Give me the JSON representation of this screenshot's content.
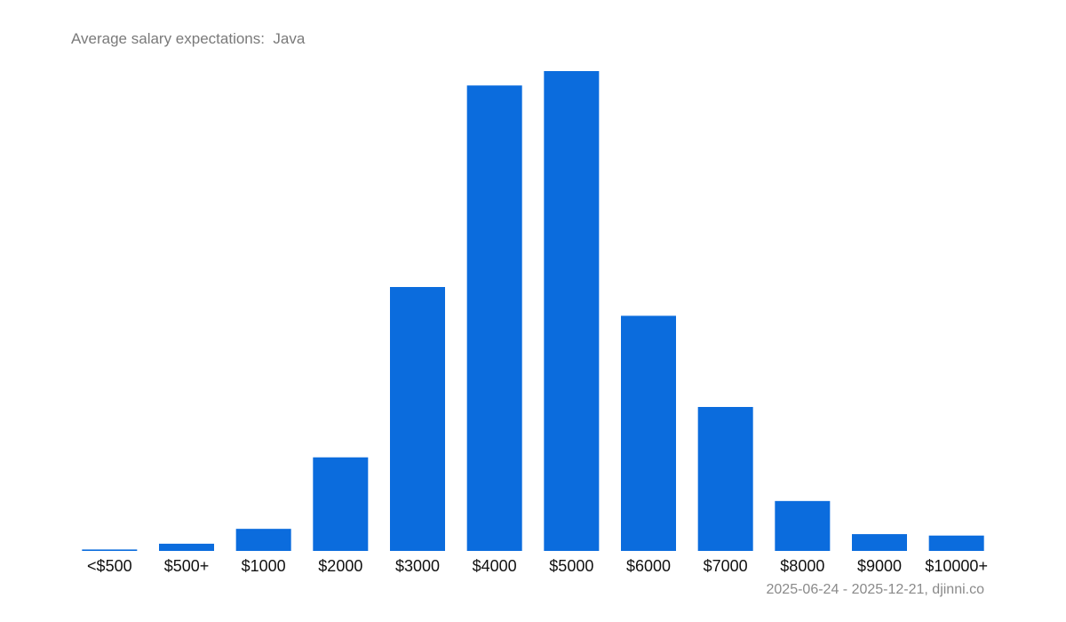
{
  "chart_data": {
    "type": "bar",
    "title": "Average salary expectations:  Java",
    "xlabel": "",
    "ylabel": "",
    "categories": [
      "<$500",
      "$500+",
      "$1000",
      "$2000",
      "$3000",
      "$4000",
      "$5000",
      "$6000",
      "$7000",
      "$8000",
      "$9000",
      "$10000+"
    ],
    "values": [
      0.3,
      1.5,
      4.6,
      19.5,
      55.0,
      97.0,
      100.0,
      49.0,
      30.0,
      10.4,
      3.5,
      3.2
    ],
    "ylim": [
      0,
      100
    ],
    "grid": false,
    "bar_color": "#0b6cdd",
    "footer": "2025-06-24 - 2025-12-21, djinni.co"
  }
}
